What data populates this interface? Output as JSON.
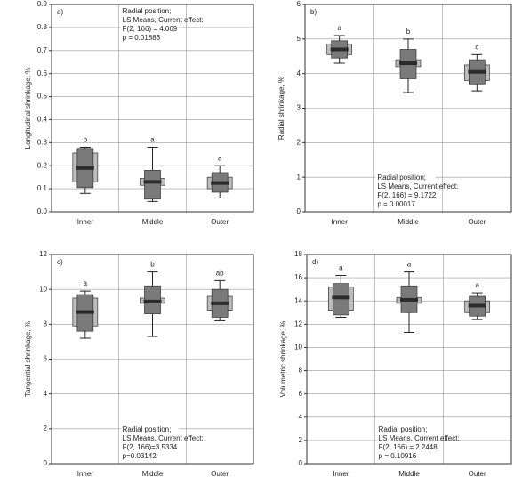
{
  "chart_data": [
    {
      "type": "box",
      "panel_label": "a)",
      "ylabel": "Longitudinal shrinkage, %",
      "categories": [
        "Inner",
        "Middle",
        "Outer"
      ],
      "ylim": [
        0,
        0.9
      ],
      "yticks": [
        {
          "value": 0,
          "label": "0.0"
        },
        0.1,
        0.2,
        0.3,
        0.4,
        0.5,
        0.6,
        0.7,
        0.8,
        0.9
      ],
      "grid": true,
      "annotation": [
        "Radial position;",
        "LS Means, Current effect:",
        "F(2, 166) = 4.069",
        "p = 0.01883"
      ],
      "boxes": [
        {
          "whisker": [
            0.08,
            0.28
          ],
          "outer": [
            0.13,
            0.255
          ],
          "inner": [
            0.105,
            0.275
          ],
          "center": 0.19,
          "letter": "b"
        },
        {
          "whisker": [
            0.045,
            0.28
          ],
          "outer": [
            0.115,
            0.145
          ],
          "inner": [
            0.055,
            0.18
          ],
          "center": 0.13,
          "letter": "a"
        },
        {
          "whisker": [
            0.06,
            0.2
          ],
          "outer": [
            0.1,
            0.15
          ],
          "inner": [
            0.085,
            0.17
          ],
          "center": 0.125,
          "letter": "a"
        }
      ]
    },
    {
      "type": "box",
      "panel_label": "b)",
      "ylabel": "Radial shrinkage, %",
      "categories": [
        "Inner",
        "Middle",
        "Outer"
      ],
      "ylim": [
        0,
        6
      ],
      "yticks": [
        0,
        1,
        2,
        3,
        4,
        5,
        6
      ],
      "grid": true,
      "annotation": [
        "Radial position;",
        "LS Means, Current effect:",
        "F(2, 166) = 9.1722",
        "p = 0.00017"
      ],
      "boxes": [
        {
          "whisker": [
            4.3,
            5.1
          ],
          "outer": [
            4.55,
            4.85
          ],
          "inner": [
            4.45,
            4.95
          ],
          "center": 4.7,
          "letter": "a"
        },
        {
          "whisker": [
            3.45,
            5.0
          ],
          "outer": [
            4.2,
            4.4
          ],
          "inner": [
            3.85,
            4.7
          ],
          "center": 4.3,
          "letter": "b"
        },
        {
          "whisker": [
            3.5,
            4.55
          ],
          "outer": [
            3.8,
            4.25
          ],
          "inner": [
            3.7,
            4.4
          ],
          "center": 4.05,
          "letter": "c"
        }
      ]
    },
    {
      "type": "box",
      "panel_label": "c)",
      "ylabel": "Tangential shrinkage, %",
      "categories": [
        "Inner",
        "Middle",
        "Outer"
      ],
      "ylim": [
        0,
        12
      ],
      "yticks": [
        0,
        2,
        4,
        6,
        8,
        10,
        12
      ],
      "grid": true,
      "annotation": [
        "Radial position;",
        "LS Means, Current effect:",
        "F(2, 166)=3.5334",
        "p=0.03142"
      ],
      "boxes": [
        {
          "whisker": [
            7.2,
            9.9
          ],
          "outer": [
            7.9,
            9.5
          ],
          "inner": [
            7.6,
            9.7
          ],
          "center": 8.7,
          "letter": "a"
        },
        {
          "whisker": [
            7.3,
            11.0
          ],
          "outer": [
            9.2,
            9.5
          ],
          "inner": [
            8.6,
            10.2
          ],
          "center": 9.3,
          "letter": "b"
        },
        {
          "whisker": [
            8.2,
            10.5
          ],
          "outer": [
            8.8,
            9.6
          ],
          "inner": [
            8.4,
            10.0
          ],
          "center": 9.2,
          "letter": "ab"
        }
      ]
    },
    {
      "type": "box",
      "panel_label": "d)",
      "ylabel": "Volumetric shrinkage, %",
      "categories": [
        "Inner",
        "Middle",
        "Outer"
      ],
      "ylim": [
        0,
        18
      ],
      "yticks": [
        0,
        2,
        4,
        6,
        8,
        10,
        12,
        14,
        16,
        18
      ],
      "grid": true,
      "annotation": [
        "Radial position;",
        "LS Means, Current effect:",
        "F(2, 166) = 2.2448",
        "p = 0.10916"
      ],
      "boxes": [
        {
          "whisker": [
            12.6,
            16.2
          ],
          "outer": [
            13.2,
            15.2
          ],
          "inner": [
            12.8,
            15.5
          ],
          "center": 14.3,
          "letter": "a"
        },
        {
          "whisker": [
            11.3,
            16.5
          ],
          "outer": [
            13.8,
            14.3
          ],
          "inner": [
            13.0,
            15.3
          ],
          "center": 14.1,
          "letter": "a"
        },
        {
          "whisker": [
            12.4,
            14.7
          ],
          "outer": [
            13.0,
            14.0
          ],
          "inner": [
            12.7,
            14.4
          ],
          "center": 13.6,
          "letter": "a"
        }
      ]
    }
  ]
}
